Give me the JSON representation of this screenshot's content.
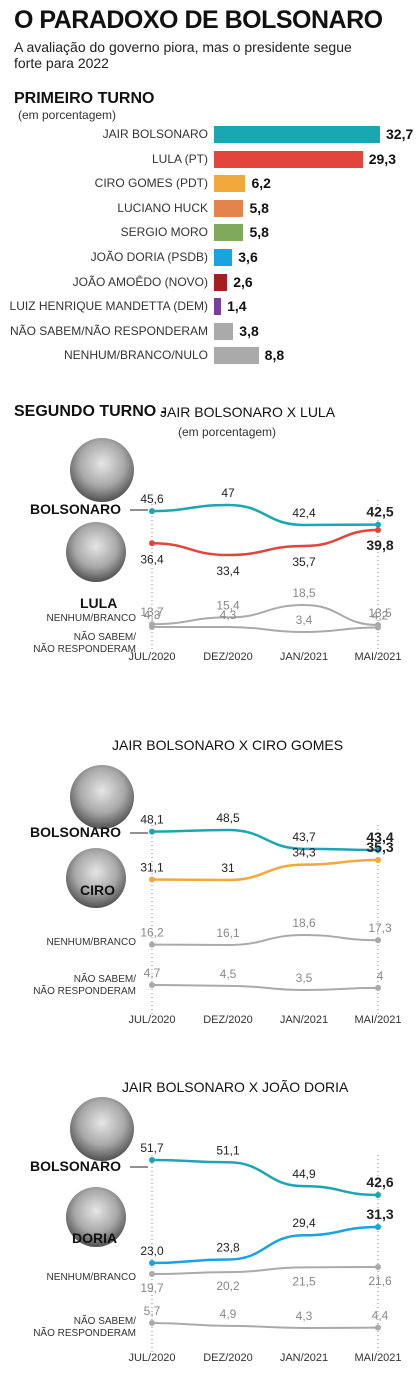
{
  "title": "O PARADOXO DE BOLSONARO",
  "subtitle": "A avaliação do governo piora, mas o presidente segue forte para 2022",
  "first_round": {
    "heading": "PRIMEIRO TURNO",
    "unit": "(em porcentagem)"
  },
  "second_round": {
    "heading": "SEGUNDO TURNO -",
    "unit": "(em porcentagem)"
  },
  "colors": {
    "bolsonaro": "#1aa7b2",
    "lula": "#e2453c",
    "ciro": "#f2a93b",
    "huck": "#e2844b",
    "moro": "#7faa5b",
    "doria": "#1aa3e0",
    "amoedo": "#a61e22",
    "mandetta": "#7a3e9d",
    "grey": "#aaaaaa"
  },
  "chart_data": [
    {
      "type": "bar",
      "title": "PRIMEIRO TURNO",
      "categories": [
        "JAIR BOLSONARO",
        "LULA (PT)",
        "CIRO GOMES (PDT)",
        "LUCIANO HUCK",
        "SERGIO MORO",
        "JOÃO DORIA (PSDB)",
        "JOÃO AMOÊDO (NOVO)",
        "LUIZ HENRIQUE MANDETTA (DEM)",
        "NÃO SABEM/NÃO RESPONDERAM",
        "NENHUM/BRANCO/NULO"
      ],
      "values": [
        32.7,
        29.3,
        6.2,
        5.8,
        5.8,
        3.6,
        2.6,
        1.4,
        3.8,
        8.8
      ],
      "value_labels": [
        "32,7",
        "29,3",
        "6,2",
        "5,8",
        "5,8",
        "3,6",
        "2,6",
        "1,4",
        "3,8",
        "8,8"
      ],
      "colors": [
        "#1aa7b2",
        "#e2453c",
        "#f2a93b",
        "#e2844b",
        "#7faa5b",
        "#1aa3e0",
        "#a61e22",
        "#7a3e9d",
        "#aaaaaa",
        "#aaaaaa"
      ],
      "ylim": [
        0,
        32.7
      ]
    },
    {
      "type": "line",
      "title": "JAIR BOLSONARO X LULA",
      "x": [
        "JUL/2020",
        "DEZ/2020",
        "JAN/2021",
        "MAI/2021"
      ],
      "series": [
        {
          "name": "BOLSONARO",
          "values": [
            45.6,
            47,
            42.4,
            42.5
          ],
          "labels": [
            "45,6",
            "47",
            "42,4",
            "42,5"
          ],
          "color": "#1aa7b2"
        },
        {
          "name": "LULA",
          "values": [
            36.4,
            33.4,
            35.7,
            39.8
          ],
          "labels": [
            "36,4",
            "33,4",
            "35,7",
            "39,8"
          ],
          "color": "#e2453c"
        },
        {
          "name": "NENHUM/BRANCO",
          "values": [
            13.7,
            15.4,
            18.5,
            13.5
          ],
          "labels": [
            "13,7",
            "15,4",
            "18,5",
            "13,5"
          ],
          "color": "#aaaaaa"
        },
        {
          "name": "NÃO SABEM/ NÃO RESPONDERAM",
          "values": [
            4.3,
            4.3,
            3.4,
            4.2
          ],
          "labels": [
            "4,3",
            "4,3",
            "3,4",
            "4,2"
          ],
          "color": "#aaaaaa"
        }
      ]
    },
    {
      "type": "line",
      "title": "JAIR BOLSONARO X CIRO GOMES",
      "x": [
        "JUL/2020",
        "DEZ/2020",
        "JAN/2021",
        "MAI/2021"
      ],
      "series": [
        {
          "name": "BOLSONARO",
          "values": [
            48.1,
            48.5,
            43.7,
            43.4
          ],
          "labels": [
            "48,1",
            "48,5",
            "43,7",
            "43,4"
          ],
          "color": "#1aa7b2"
        },
        {
          "name": "CIRO",
          "values": [
            31.1,
            31,
            34.3,
            35.3
          ],
          "labels": [
            "31,1",
            "31",
            "34,3",
            "35,3"
          ],
          "color": "#f2a93b"
        },
        {
          "name": "NENHUM/BRANCO",
          "values": [
            16.2,
            16.1,
            18.6,
            17.3
          ],
          "labels": [
            "16,2",
            "16,1",
            "18,6",
            "17,3"
          ],
          "color": "#aaaaaa"
        },
        {
          "name": "NÃO SABEM/ NÃO RESPONDERAM",
          "values": [
            4.7,
            4.5,
            3.5,
            4
          ],
          "labels": [
            "4,7",
            "4,5",
            "3,5",
            "4"
          ],
          "color": "#aaaaaa"
        }
      ]
    },
    {
      "type": "line",
      "title": "JAIR BOLSONARO X JOÃO DORIA",
      "x": [
        "JUL/2020",
        "DEZ/2020",
        "JAN/2021",
        "MAI/2021"
      ],
      "series": [
        {
          "name": "BOLSONARO",
          "values": [
            51.7,
            51.1,
            44.9,
            42.6
          ],
          "labels": [
            "51,7",
            "51,1",
            "44,9",
            "42,6"
          ],
          "color": "#1aa7b2"
        },
        {
          "name": "DORIA",
          "values": [
            23.0,
            23.8,
            29.4,
            31.3
          ],
          "labels": [
            "23,0",
            "23,8",
            "29,4",
            "31,3"
          ],
          "color": "#1aa3e0"
        },
        {
          "name": "NENHUM/BRANCO",
          "values": [
            19.7,
            20.2,
            21.5,
            21.6
          ],
          "labels": [
            "19,7",
            "20,2",
            "21,5",
            "21,6"
          ],
          "color": "#aaaaaa"
        },
        {
          "name": "NÃO SABEM/ NÃO RESPONDERAM",
          "values": [
            5.7,
            4.9,
            4.3,
            4.4
          ],
          "labels": [
            "5,7",
            "4,9",
            "4,3",
            "4,4"
          ],
          "color": "#aaaaaa"
        }
      ]
    }
  ]
}
